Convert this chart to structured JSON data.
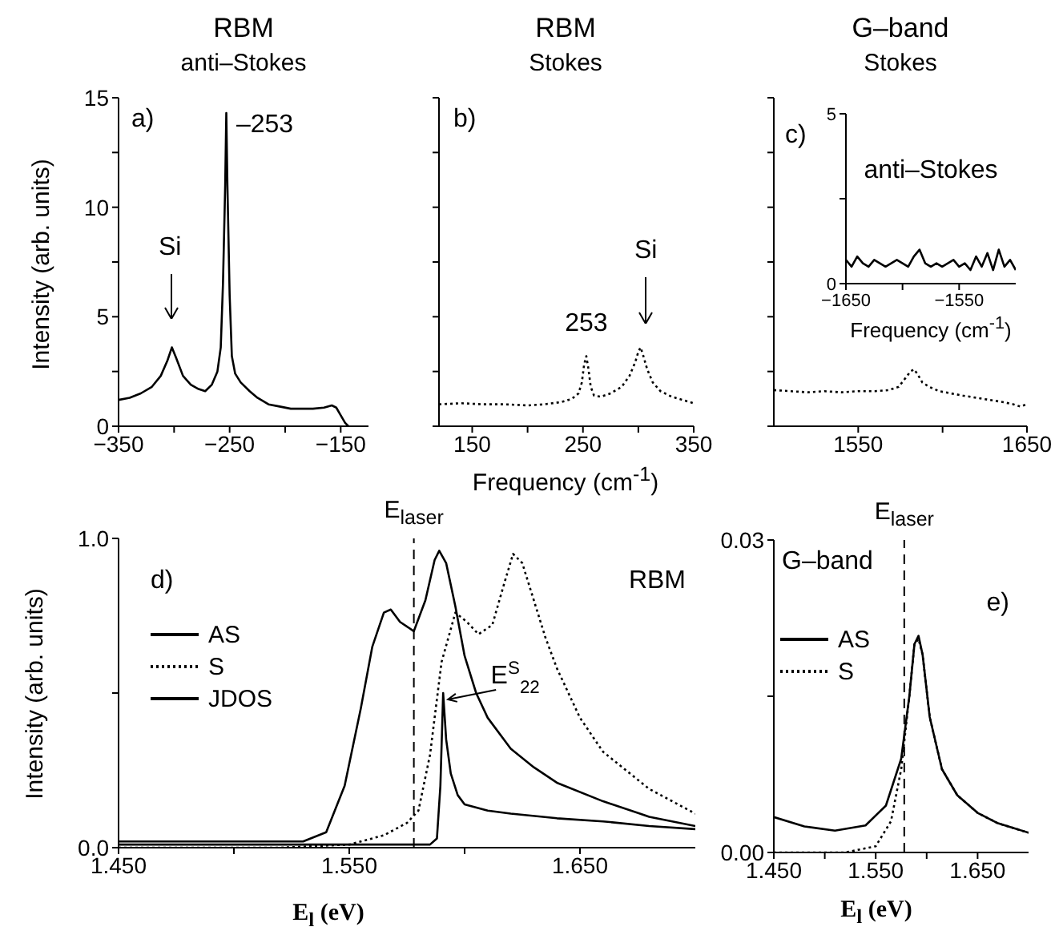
{
  "chart_data": [
    {
      "type": "line",
      "title": "RBM",
      "subtitle": "anti–Stokes",
      "ylabel": "Intensity (arb. units)",
      "xlim": [
        -350,
        -125
      ],
      "xticks": [
        -350,
        {
          "value": -300,
          "label": null
        },
        -250,
        {
          "value": -200,
          "label": null
        },
        -150
      ],
      "ylim": [
        0,
        15
      ],
      "yticks": [
        0,
        {
          "value": 2.5,
          "label": null
        },
        5,
        {
          "value": 7.5,
          "label": null
        },
        10,
        {
          "value": 12.5,
          "label": null
        },
        15
      ],
      "annotations": [
        "a)",
        "Si",
        {
          "text": "–253",
          "x": -253,
          "y": 14.3
        }
      ],
      "x": [
        -350,
        -340,
        -330,
        -320,
        -312,
        -306,
        -302,
        -298,
        -292,
        -285,
        -278,
        -272,
        -266,
        -261,
        -258,
        -256,
        -254,
        -253,
        -252,
        -250,
        -248,
        -245,
        -240,
        -232,
        -225,
        -215,
        -205,
        -195,
        -185,
        -175,
        -165,
        -158,
        -154,
        -150,
        -146,
        -143
      ],
      "values": [
        1.2,
        1.3,
        1.5,
        1.8,
        2.3,
        3.0,
        3.6,
        3.1,
        2.3,
        1.9,
        1.7,
        1.6,
        1.9,
        2.5,
        3.6,
        6.5,
        11,
        14.3,
        11,
        6,
        3.2,
        2.4,
        2.0,
        1.6,
        1.3,
        1.0,
        0.9,
        0.8,
        0.8,
        0.8,
        0.85,
        0.95,
        0.85,
        0.5,
        0.15,
        0
      ],
      "color": "#000000",
      "line_style": "solid",
      "marker": "none"
    },
    {
      "type": "line",
      "title": "RBM",
      "subtitle": "Stokes",
      "xlabel": "Frequency (cm$^{-1}$)",
      "tick_labels": "x",
      "xlim": [
        120,
        350
      ],
      "xticks": [
        150,
        {
          "value": 200,
          "label": null
        },
        250,
        {
          "value": 300,
          "label": null
        },
        350
      ],
      "ylim": [
        0,
        15
      ],
      "yticks": [
        0,
        {
          "value": 2.5,
          "label": null
        },
        5,
        {
          "value": 7.5,
          "label": null
        },
        10,
        {
          "value": 12.5,
          "label": null
        },
        15
      ],
      "annotations": [
        "b)",
        {
          "text": "253",
          "x": 253,
          "y": 3.2
        },
        "Si"
      ],
      "x": [
        120,
        140,
        160,
        180,
        200,
        215,
        230,
        240,
        246,
        249,
        251,
        253,
        255,
        257,
        260,
        266,
        275,
        285,
        292,
        297,
        300,
        302,
        304,
        308,
        313,
        320,
        330,
        340,
        350
      ],
      "values": [
        1.0,
        1.05,
        1.0,
        1.0,
        0.95,
        1.0,
        1.1,
        1.25,
        1.5,
        2.0,
        2.8,
        3.2,
        2.6,
        1.8,
        1.4,
        1.35,
        1.5,
        1.8,
        2.3,
        2.9,
        3.4,
        3.6,
        3.3,
        2.6,
        2.0,
        1.6,
        1.35,
        1.2,
        1.05
      ],
      "color": "#000000",
      "line_style": "dotted",
      "marker": "none"
    },
    {
      "type": "line",
      "title": "G–band",
      "subtitle": "Stokes",
      "tick_labels": "x",
      "xlim": [
        1500,
        1650
      ],
      "xticks": [
        1550,
        {
          "value": 1600,
          "label": null
        },
        1650
      ],
      "ylim": [
        0,
        15
      ],
      "yticks": [
        0,
        {
          "value": 2.5,
          "label": null
        },
        5,
        {
          "value": 7.5,
          "label": null
        },
        10,
        {
          "value": 12.5,
          "label": null
        },
        15
      ],
      "annotations": [
        "c)"
      ],
      "x": [
        1500,
        1510,
        1520,
        1530,
        1540,
        1550,
        1560,
        1568,
        1574,
        1578,
        1581,
        1583,
        1585,
        1588,
        1592,
        1598,
        1605,
        1612,
        1620,
        1628,
        1636,
        1642,
        1646,
        1650
      ],
      "values": [
        1.65,
        1.6,
        1.55,
        1.6,
        1.55,
        1.6,
        1.6,
        1.65,
        1.8,
        2.2,
        2.5,
        2.6,
        2.4,
        2.0,
        1.8,
        1.6,
        1.5,
        1.4,
        1.3,
        1.2,
        1.1,
        1.0,
        0.9,
        1.0
      ],
      "color": "#000000",
      "line_style": "dotted",
      "marker": "none"
    },
    {
      "type": "line",
      "title": "anti–Stokes",
      "xlabel": "Frequency (cm$^{-1}$)",
      "xlim": [
        -1650,
        -1500
      ],
      "xticks": [
        -1650,
        {
          "value": -1600,
          "label": null
        },
        -1550
      ],
      "ylim": [
        0,
        5
      ],
      "yticks": [
        0,
        {
          "value": 2.5,
          "label": null
        },
        5
      ],
      "x": [
        -1650,
        -1645,
        -1640,
        -1635,
        -1630,
        -1625,
        -1620,
        -1615,
        -1610,
        -1605,
        -1600,
        -1595,
        -1590,
        -1585,
        -1580,
        -1575,
        -1570,
        -1565,
        -1560,
        -1555,
        -1550,
        -1545,
        -1540,
        -1535,
        -1530,
        -1525,
        -1520,
        -1515,
        -1510,
        -1505,
        -1500
      ],
      "values": [
        0.7,
        0.5,
        0.8,
        0.6,
        0.5,
        0.7,
        0.6,
        0.5,
        0.6,
        0.7,
        0.6,
        0.5,
        0.8,
        1.0,
        0.6,
        0.5,
        0.6,
        0.5,
        0.6,
        0.7,
        0.5,
        0.6,
        0.4,
        0.8,
        0.5,
        0.9,
        0.4,
        1.0,
        0.5,
        0.7,
        0.4
      ],
      "color": "#000000",
      "line_style": "solid",
      "marker": "none"
    },
    {
      "type": "line",
      "xlabel": "E$_{l}$ (eV)",
      "ylabel": "Intensity (arb. units)",
      "xlim": [
        1.45,
        1.7
      ],
      "xticks": [
        {
          "value": 1.45,
          "label": "1.450"
        },
        {
          "value": 1.5,
          "label": null
        },
        {
          "value": 1.55,
          "label": "1.550"
        },
        {
          "value": 1.6,
          "label": null
        },
        {
          "value": 1.65,
          "label": "1.650"
        }
      ],
      "ylim": [
        0,
        1
      ],
      "yticks": [
        {
          "value": 0,
          "label": "0.0"
        },
        {
          "value": 0.5,
          "label": null
        },
        {
          "value": 1,
          "label": "1.0"
        }
      ],
      "legend": "left",
      "marker": "none",
      "ref_lines": [
        {
          "axis": "x",
          "value": 1.578,
          "label": "E$_{laser}$",
          "line_style": "dashed",
          "color": "#000000"
        }
      ],
      "annotations": [
        "d)",
        "RBM",
        {
          "text": "E$^{S}$$_{22}$",
          "x": 1.5907,
          "y": 0.5
        }
      ],
      "series": [
        {
          "name": "AS",
          "color": "#000000",
          "line_style": "solid",
          "x": [
            1.45,
            1.5,
            1.53,
            1.54,
            1.548,
            1.555,
            1.56,
            1.565,
            1.568,
            1.572,
            1.578,
            1.583,
            1.587,
            1.589,
            1.592,
            1.596,
            1.6,
            1.605,
            1.61,
            1.62,
            1.63,
            1.64,
            1.66,
            1.68,
            1.7
          ],
          "values": [
            0.02,
            0.02,
            0.02,
            0.05,
            0.2,
            0.45,
            0.65,
            0.76,
            0.77,
            0.73,
            0.7,
            0.8,
            0.93,
            0.96,
            0.92,
            0.78,
            0.62,
            0.5,
            0.42,
            0.32,
            0.26,
            0.21,
            0.15,
            0.1,
            0.07
          ]
        },
        {
          "name": "S",
          "color": "#000000",
          "line_style": "dotted",
          "x": [
            1.45,
            1.52,
            1.55,
            1.565,
            1.575,
            1.58,
            1.585,
            1.59,
            1.596,
            1.601,
            1.606,
            1.612,
            1.617,
            1.621,
            1.625,
            1.63,
            1.635,
            1.64,
            1.65,
            1.66,
            1.68,
            1.7
          ],
          "values": [
            0,
            0,
            0.01,
            0.04,
            0.08,
            0.12,
            0.3,
            0.6,
            0.76,
            0.73,
            0.69,
            0.72,
            0.85,
            0.95,
            0.92,
            0.8,
            0.68,
            0.58,
            0.42,
            0.31,
            0.19,
            0.11
          ]
        },
        {
          "name": "JDOS",
          "color": "#000000",
          "line_style": "solid",
          "x": [
            1.45,
            1.55,
            1.585,
            1.588,
            1.5895,
            1.5907,
            1.592,
            1.594,
            1.597,
            1.6,
            1.61,
            1.62,
            1.64,
            1.66,
            1.68,
            1.7
          ],
          "values": [
            0.01,
            0.01,
            0.01,
            0.03,
            0.2,
            0.5,
            0.35,
            0.24,
            0.17,
            0.14,
            0.12,
            0.11,
            0.095,
            0.085,
            0.07,
            0.06
          ]
        }
      ]
    },
    {
      "type": "line",
      "xlabel": "E$_{l}$ (eV)",
      "xlim": [
        1.45,
        1.7
      ],
      "xticks": [
        {
          "value": 1.45,
          "label": "1.450"
        },
        {
          "value": 1.5,
          "label": null
        },
        {
          "value": 1.55,
          "label": "1.550"
        },
        {
          "value": 1.6,
          "label": null
        },
        {
          "value": 1.65,
          "label": "1.650"
        }
      ],
      "ylim": [
        0,
        0.03
      ],
      "yticks": [
        {
          "value": 0,
          "label": "0.00"
        },
        {
          "value": 0.015,
          "label": null
        },
        0.03
      ],
      "legend": "top left",
      "marker": "none",
      "ref_lines": [
        {
          "axis": "x",
          "value": 1.578,
          "label": "E$_{laser}$",
          "line_style": "dashed",
          "color": "#000000"
        }
      ],
      "annotations": [
        "G–band",
        "e)"
      ],
      "series": [
        {
          "name": "AS",
          "color": "#000000",
          "line_style": "solid",
          "x": [
            1.45,
            1.48,
            1.51,
            1.54,
            1.56,
            1.575,
            1.583,
            1.588,
            1.592,
            1.596,
            1.603,
            1.615,
            1.63,
            1.65,
            1.67,
            1.7
          ],
          "values": [
            0.0034,
            0.0025,
            0.0021,
            0.0026,
            0.0045,
            0.009,
            0.015,
            0.02,
            0.0208,
            0.019,
            0.013,
            0.008,
            0.0055,
            0.0038,
            0.0028,
            0.0019
          ]
        },
        {
          "name": "S",
          "color": "#000000",
          "line_style": "dotted",
          "x": [
            1.45,
            1.52,
            1.55,
            1.565,
            1.575,
            1.583,
            1.588,
            1.592,
            1.596,
            1.603,
            1.615,
            1.63,
            1.65,
            1.67,
            1.7
          ],
          "values": [
            0,
            0,
            0.0006,
            0.003,
            0.008,
            0.015,
            0.02,
            0.0205,
            0.019,
            0.013,
            0.008,
            0.0055,
            0.0038,
            0.0028,
            0.0019
          ]
        }
      ]
    }
  ]
}
